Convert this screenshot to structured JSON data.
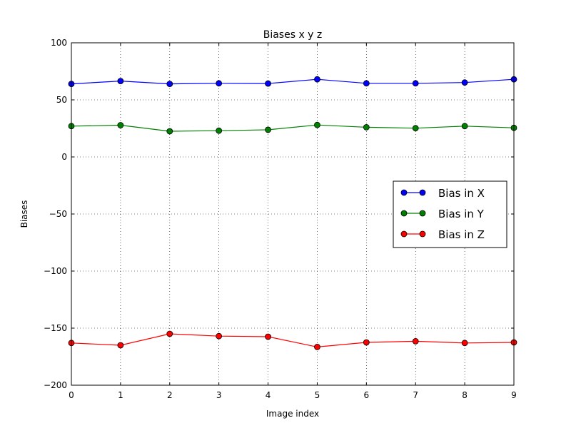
{
  "chart_data": {
    "type": "line",
    "title": "Biases  x y z",
    "xlabel": "Image index",
    "ylabel": "Biases",
    "xlim": [
      0,
      9
    ],
    "ylim": [
      -200,
      100
    ],
    "xticks": [
      0,
      1,
      2,
      3,
      4,
      5,
      6,
      7,
      8,
      9
    ],
    "xtick_labels": [
      "0",
      "1",
      "2",
      "3",
      "4",
      "5",
      "6",
      "7",
      "8",
      "9"
    ],
    "yticks": [
      100,
      50,
      0,
      -50,
      -100,
      -150,
      -200
    ],
    "ytick_labels": [
      "100",
      "50",
      "0",
      "−50",
      "−100",
      "−150",
      "−200"
    ],
    "grid": true,
    "legend_position": "center-right",
    "x": [
      0,
      1,
      2,
      3,
      4,
      5,
      6,
      7,
      8,
      9
    ],
    "series": [
      {
        "name": "Bias in X",
        "color": "#0000ff",
        "values": [
          64,
          66.5,
          64,
          64.5,
          64.3,
          68,
          64.5,
          64.5,
          65.2,
          68
        ]
      },
      {
        "name": "Bias in Y",
        "color": "#008000",
        "values": [
          27,
          27.8,
          22.5,
          23,
          23.8,
          28,
          26,
          25.2,
          27,
          25.5
        ]
      },
      {
        "name": "Bias in Z",
        "color": "#ff0000",
        "values": [
          -163,
          -165,
          -155,
          -157,
          -157.5,
          -166.5,
          -162.5,
          -161.5,
          -163,
          -162.5
        ]
      }
    ]
  }
}
